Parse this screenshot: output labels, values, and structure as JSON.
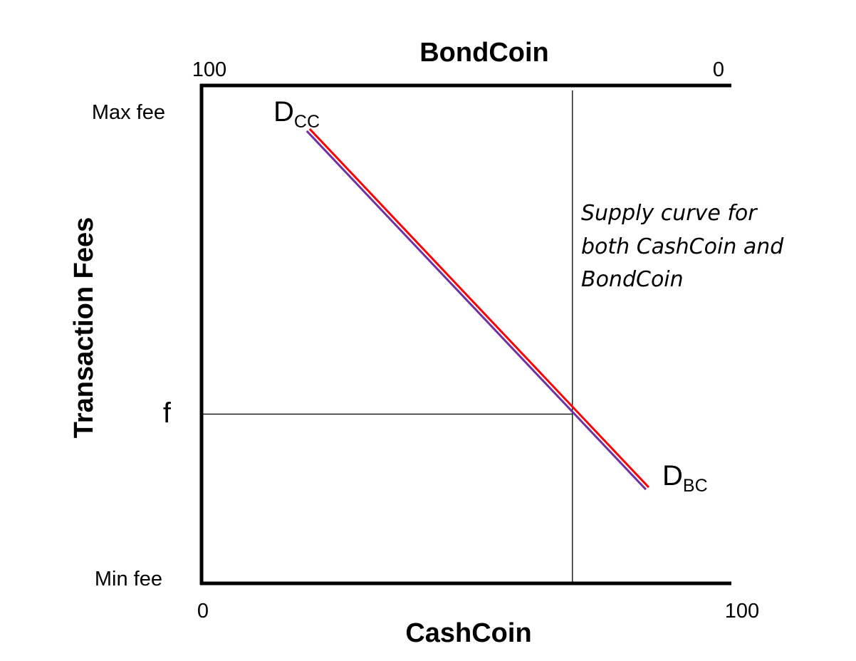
{
  "chart_data": {
    "type": "line",
    "top_axis_title": "BondCoin",
    "bottom_axis_title": "CashCoin",
    "y_axis_title": "Transaction Fees",
    "top_ticks": {
      "left": "100",
      "right": "0"
    },
    "bottom_ticks": {
      "left": "0",
      "right": "100"
    },
    "y_ticks": {
      "max": "Max fee",
      "f": "f",
      "min": "Min fee"
    },
    "xlim": [
      0,
      100
    ],
    "ylim": [
      0,
      100
    ],
    "supply": {
      "x": 70,
      "label_lines": [
        "Supply curve for",
        "both CashCoin and",
        "BondCoin"
      ]
    },
    "f_level": 34,
    "series": [
      {
        "name": "D",
        "subscript": "CC",
        "color": "#7030A0",
        "x": [
          20,
          84
        ],
        "y": [
          91,
          19
        ]
      },
      {
        "name": "D",
        "subscript": "BC",
        "color": "#FF0000",
        "x": [
          20,
          84
        ],
        "y": [
          91,
          19
        ]
      }
    ]
  }
}
